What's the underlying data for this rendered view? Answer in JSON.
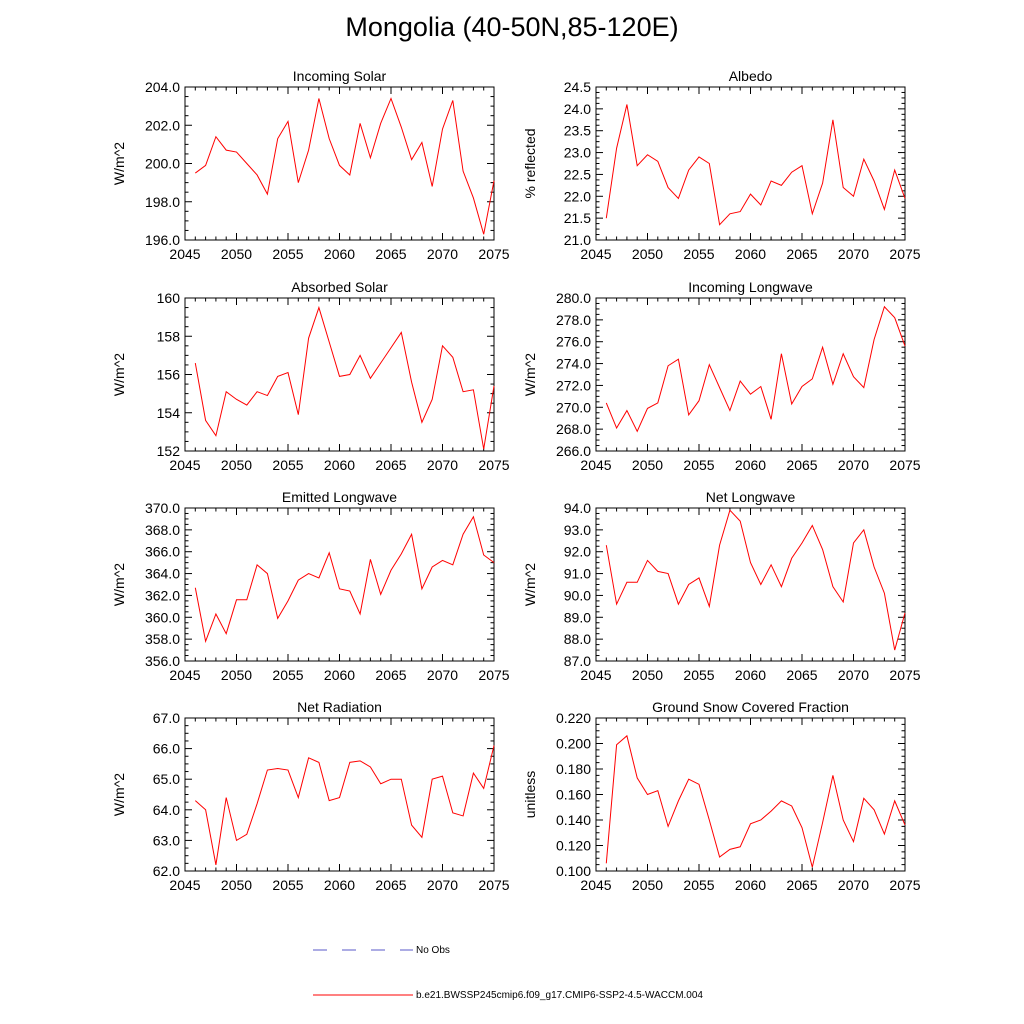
{
  "figure": {
    "title": "Mongolia (40-50N,85-120E)"
  },
  "legend": {
    "obs_label": "No Obs",
    "obs_color": "#5a5ac8",
    "model_label": "b.e21.BWSSP245cmip6.f09_g17.CMIP6-SSP2-4.5-WACCM.004",
    "model_color": "#ff0000"
  },
  "chart_data": [
    {
      "type": "line",
      "title": "Incoming Solar",
      "ylabel": "W/m^2",
      "xlabel": "",
      "xlim": [
        2045,
        2075
      ],
      "ylim": [
        196.0,
        204.0
      ],
      "xticks": [
        2045,
        2050,
        2055,
        2060,
        2065,
        2070,
        2075
      ],
      "yticks": [
        "196.0",
        "198.0",
        "200.0",
        "202.0",
        "204.0"
      ],
      "x": [
        2046,
        2047,
        2048,
        2049,
        2050,
        2051,
        2052,
        2053,
        2054,
        2055,
        2056,
        2057,
        2058,
        2059,
        2060,
        2061,
        2062,
        2063,
        2064,
        2065,
        2066,
        2067,
        2068,
        2069,
        2070,
        2071,
        2072,
        2073,
        2074,
        2075
      ],
      "series": [
        {
          "name": "b.e21.BWSSP245cmip6.f09_g17.CMIP6-SSP2-4.5-WACCM.004",
          "color": "#ff0000",
          "values": [
            199.5,
            199.9,
            201.4,
            200.7,
            200.6,
            200.0,
            199.4,
            198.4,
            201.3,
            202.2,
            199.0,
            200.7,
            203.4,
            201.3,
            199.9,
            199.4,
            202.1,
            200.3,
            202.1,
            203.4,
            201.9,
            200.2,
            201.1,
            198.8,
            201.8,
            203.3,
            199.6,
            198.2,
            196.3,
            199.1
          ]
        }
      ]
    },
    {
      "type": "line",
      "title": "Albedo",
      "ylabel": "% reflected",
      "xlabel": "",
      "xlim": [
        2045,
        2075
      ],
      "ylim": [
        21.0,
        24.5
      ],
      "xticks": [
        2045,
        2050,
        2055,
        2060,
        2065,
        2070,
        2075
      ],
      "yticks": [
        "21.0",
        "21.5",
        "22.0",
        "22.5",
        "23.0",
        "23.5",
        "24.0",
        "24.5"
      ],
      "x": [
        2046,
        2047,
        2048,
        2049,
        2050,
        2051,
        2052,
        2053,
        2054,
        2055,
        2056,
        2057,
        2058,
        2059,
        2060,
        2061,
        2062,
        2063,
        2064,
        2065,
        2066,
        2067,
        2068,
        2069,
        2070,
        2071,
        2072,
        2073,
        2074,
        2075
      ],
      "series": [
        {
          "name": "b.e21.BWSSP245cmip6.f09_g17.CMIP6-SSP2-4.5-WACCM.004",
          "color": "#ff0000",
          "values": [
            21.5,
            23.1,
            24.1,
            22.7,
            22.95,
            22.8,
            22.2,
            21.95,
            22.6,
            22.9,
            22.75,
            21.35,
            21.6,
            21.65,
            22.05,
            21.8,
            22.35,
            22.25,
            22.55,
            22.7,
            21.6,
            22.3,
            23.75,
            22.2,
            22.0,
            22.85,
            22.35,
            21.7,
            22.6,
            21.95
          ]
        }
      ]
    },
    {
      "type": "line",
      "title": "Absorbed Solar",
      "ylabel": "W/m^2",
      "xlabel": "",
      "xlim": [
        2045,
        2075
      ],
      "ylim": [
        152,
        160
      ],
      "xticks": [
        2045,
        2050,
        2055,
        2060,
        2065,
        2070,
        2075
      ],
      "yticks": [
        "152",
        "154",
        "156",
        "158",
        "160"
      ],
      "x": [
        2046,
        2047,
        2048,
        2049,
        2050,
        2051,
        2052,
        2053,
        2054,
        2055,
        2056,
        2057,
        2058,
        2059,
        2060,
        2061,
        2062,
        2063,
        2064,
        2065,
        2066,
        2067,
        2068,
        2069,
        2070,
        2071,
        2072,
        2073,
        2074,
        2075
      ],
      "series": [
        {
          "name": "b.e21.BWSSP245cmip6.f09_g17.CMIP6-SSP2-4.5-WACCM.004",
          "color": "#ff0000",
          "values": [
            156.6,
            153.6,
            152.8,
            155.1,
            154.7,
            154.4,
            155.1,
            154.9,
            155.9,
            156.1,
            153.9,
            157.9,
            159.5,
            157.7,
            155.9,
            156.0,
            157.0,
            155.8,
            156.6,
            157.4,
            158.2,
            155.6,
            153.5,
            154.7,
            157.5,
            156.9,
            155.1,
            155.2,
            152.1,
            155.4
          ]
        }
      ]
    },
    {
      "type": "line",
      "title": "Incoming Longwave",
      "ylabel": "W/m^2",
      "xlabel": "",
      "xlim": [
        2045,
        2075
      ],
      "ylim": [
        266.0,
        280.0
      ],
      "xticks": [
        2045,
        2050,
        2055,
        2060,
        2065,
        2070,
        2075
      ],
      "yticks": [
        "266.0",
        "268.0",
        "270.0",
        "272.0",
        "274.0",
        "276.0",
        "278.0",
        "280.0"
      ],
      "x": [
        2046,
        2047,
        2048,
        2049,
        2050,
        2051,
        2052,
        2053,
        2054,
        2055,
        2056,
        2057,
        2058,
        2059,
        2060,
        2061,
        2062,
        2063,
        2064,
        2065,
        2066,
        2067,
        2068,
        2069,
        2070,
        2071,
        2072,
        2073,
        2074,
        2075
      ],
      "series": [
        {
          "name": "b.e21.BWSSP245cmip6.f09_g17.CMIP6-SSP2-4.5-WACCM.004",
          "color": "#ff0000",
          "values": [
            270.4,
            268.1,
            269.7,
            267.8,
            269.9,
            270.4,
            273.8,
            274.4,
            269.3,
            270.6,
            273.9,
            271.8,
            269.7,
            272.4,
            271.2,
            271.9,
            268.9,
            274.9,
            270.3,
            271.9,
            272.6,
            275.5,
            272.1,
            274.9,
            272.8,
            271.8,
            276.2,
            279.2,
            278.2,
            275.6
          ]
        }
      ]
    },
    {
      "type": "line",
      "title": "Emitted Longwave",
      "ylabel": "W/m^2",
      "xlabel": "",
      "xlim": [
        2045,
        2075
      ],
      "ylim": [
        356.0,
        370.0
      ],
      "xticks": [
        2045,
        2050,
        2055,
        2060,
        2065,
        2070,
        2075
      ],
      "yticks": [
        "356.0",
        "358.0",
        "360.0",
        "362.0",
        "364.0",
        "366.0",
        "368.0",
        "370.0"
      ],
      "x": [
        2046,
        2047,
        2048,
        2049,
        2050,
        2051,
        2052,
        2053,
        2054,
        2055,
        2056,
        2057,
        2058,
        2059,
        2060,
        2061,
        2062,
        2063,
        2064,
        2065,
        2066,
        2067,
        2068,
        2069,
        2070,
        2071,
        2072,
        2073,
        2074,
        2075
      ],
      "series": [
        {
          "name": "b.e21.BWSSP245cmip6.f09_g17.CMIP6-SSP2-4.5-WACCM.004",
          "color": "#ff0000",
          "values": [
            362.7,
            357.8,
            360.3,
            358.5,
            361.6,
            361.6,
            364.8,
            364.0,
            359.9,
            361.5,
            363.4,
            364.0,
            363.6,
            365.9,
            362.6,
            362.4,
            360.3,
            365.3,
            362.1,
            364.3,
            365.8,
            367.6,
            362.6,
            364.6,
            365.2,
            364.8,
            367.6,
            369.2,
            365.7,
            365.0
          ]
        }
      ]
    },
    {
      "type": "line",
      "title": "Net Longwave",
      "ylabel": "W/m^2",
      "xlabel": "",
      "xlim": [
        2045,
        2075
      ],
      "ylim": [
        87.0,
        94.0
      ],
      "xticks": [
        2045,
        2050,
        2055,
        2060,
        2065,
        2070,
        2075
      ],
      "yticks": [
        "87.0",
        "88.0",
        "89.0",
        "90.0",
        "91.0",
        "92.0",
        "93.0",
        "94.0"
      ],
      "x": [
        2046,
        2047,
        2048,
        2049,
        2050,
        2051,
        2052,
        2053,
        2054,
        2055,
        2056,
        2057,
        2058,
        2059,
        2060,
        2061,
        2062,
        2063,
        2064,
        2065,
        2066,
        2067,
        2068,
        2069,
        2070,
        2071,
        2072,
        2073,
        2074,
        2075
      ],
      "series": [
        {
          "name": "b.e21.BWSSP245cmip6.f09_g17.CMIP6-SSP2-4.5-WACCM.004",
          "color": "#ff0000",
          "values": [
            92.3,
            89.6,
            90.6,
            90.6,
            91.6,
            91.1,
            91.0,
            89.6,
            90.5,
            90.8,
            89.5,
            92.3,
            93.9,
            93.4,
            91.5,
            90.5,
            91.4,
            90.4,
            91.7,
            92.4,
            93.2,
            92.1,
            90.4,
            89.7,
            92.4,
            93.0,
            91.3,
            90.1,
            87.5,
            89.2
          ]
        }
      ]
    },
    {
      "type": "line",
      "title": "Net Radiation",
      "ylabel": "W/m^2",
      "xlabel": "",
      "xlim": [
        2045,
        2075
      ],
      "ylim": [
        62.0,
        67.0
      ],
      "xticks": [
        2045,
        2050,
        2055,
        2060,
        2065,
        2070,
        2075
      ],
      "yticks": [
        "62.0",
        "63.0",
        "64.0",
        "65.0",
        "66.0",
        "67.0"
      ],
      "x": [
        2046,
        2047,
        2048,
        2049,
        2050,
        2051,
        2052,
        2053,
        2054,
        2055,
        2056,
        2057,
        2058,
        2059,
        2060,
        2061,
        2062,
        2063,
        2064,
        2065,
        2066,
        2067,
        2068,
        2069,
        2070,
        2071,
        2072,
        2073,
        2074,
        2075
      ],
      "series": [
        {
          "name": "b.e21.BWSSP245cmip6.f09_g17.CMIP6-SSP2-4.5-WACCM.004",
          "color": "#ff0000",
          "values": [
            64.3,
            64.0,
            62.2,
            64.4,
            63.0,
            63.2,
            64.2,
            65.3,
            65.35,
            65.3,
            64.4,
            65.7,
            65.55,
            64.3,
            64.4,
            65.55,
            65.6,
            65.4,
            64.85,
            65.0,
            65.0,
            63.5,
            63.1,
            65.0,
            65.1,
            63.9,
            63.8,
            65.2,
            64.7,
            66.1
          ]
        }
      ]
    },
    {
      "type": "line",
      "title": "Ground Snow Covered Fraction",
      "ylabel": "unitless",
      "xlabel": "",
      "xlim": [
        2045,
        2075
      ],
      "ylim": [
        0.1,
        0.22
      ],
      "xticks": [
        2045,
        2050,
        2055,
        2060,
        2065,
        2070,
        2075
      ],
      "yticks": [
        "0.100",
        "0.120",
        "0.140",
        "0.160",
        "0.180",
        "0.200",
        "0.220"
      ],
      "x": [
        2046,
        2047,
        2048,
        2049,
        2050,
        2051,
        2052,
        2053,
        2054,
        2055,
        2056,
        2057,
        2058,
        2059,
        2060,
        2061,
        2062,
        2063,
        2064,
        2065,
        2066,
        2067,
        2068,
        2069,
        2070,
        2071,
        2072,
        2073,
        2074,
        2075
      ],
      "series": [
        {
          "name": "b.e21.BWSSP245cmip6.f09_g17.CMIP6-SSP2-4.5-WACCM.004",
          "color": "#ff0000",
          "values": [
            0.106,
            0.199,
            0.206,
            0.173,
            0.16,
            0.163,
            0.135,
            0.155,
            0.172,
            0.168,
            0.14,
            0.111,
            0.117,
            0.119,
            0.137,
            0.14,
            0.147,
            0.155,
            0.151,
            0.134,
            0.103,
            0.138,
            0.175,
            0.14,
            0.123,
            0.157,
            0.148,
            0.129,
            0.155,
            0.136
          ]
        }
      ]
    }
  ]
}
